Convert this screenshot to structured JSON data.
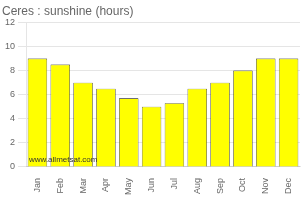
{
  "chart_data": {
    "type": "bar",
    "title": "Ceres : sunshine (hours)",
    "categories": [
      "Jan",
      "Feb",
      "Mar",
      "Apr",
      "May",
      "Jun",
      "Jul",
      "Aug",
      "Sep",
      "Oct",
      "Nov",
      "Dec"
    ],
    "values": [
      9.0,
      8.5,
      7.0,
      6.5,
      5.7,
      5.0,
      5.3,
      6.5,
      7.0,
      8.0,
      9.0,
      9.0
    ],
    "color": "#FFFF00",
    "ylim": [
      0,
      12
    ],
    "yticks": [
      0,
      2,
      4,
      6,
      8,
      10,
      12
    ],
    "grid": true,
    "annotations": [
      "www.allmetsat.com"
    ]
  }
}
